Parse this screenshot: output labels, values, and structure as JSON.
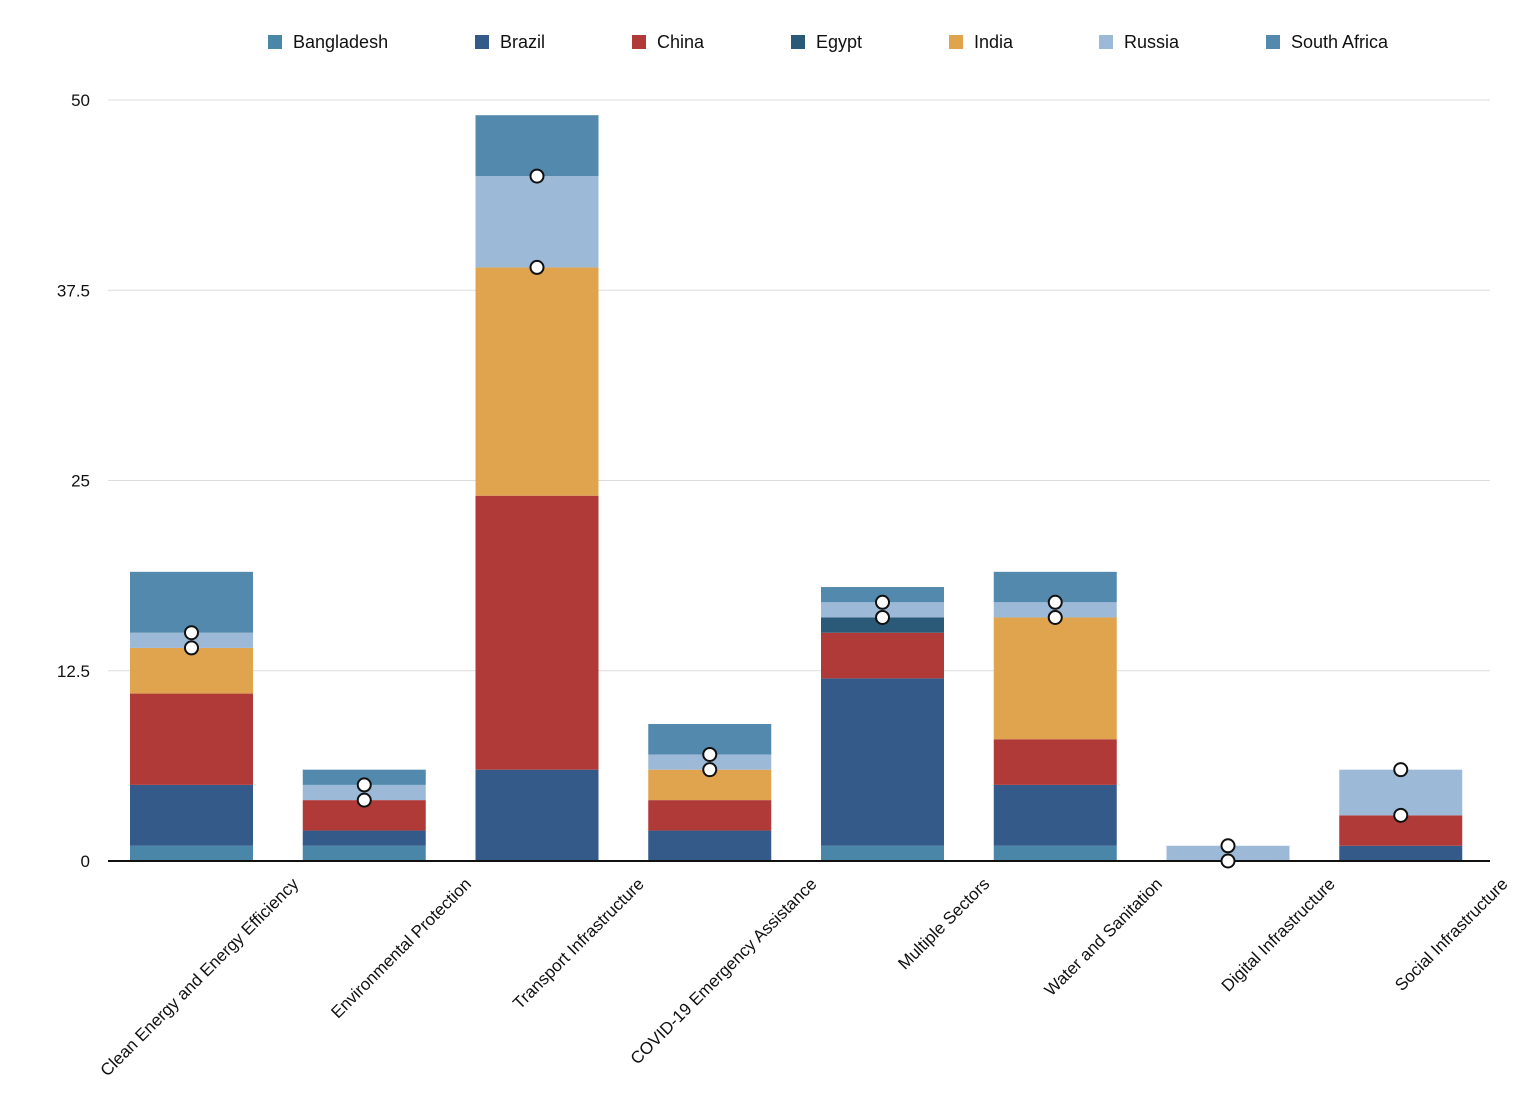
{
  "chart_data": {
    "type": "bar",
    "stacked": true,
    "categories": [
      "Clean Energy and Energy Efficiency",
      "Environmental Protection",
      "Transport Infrastructure",
      "COVID-19 Emergency Assistance",
      "Multiple Sectors",
      "Water and Sanitation",
      "Digital Infrastructure",
      "Social Infrastructure"
    ],
    "series": [
      {
        "name": "Bangladesh",
        "color": "#4a86a8",
        "values": [
          1,
          1,
          0,
          0,
          1,
          1,
          0,
          0
        ]
      },
      {
        "name": "Brazil",
        "color": "#345a8a",
        "values": [
          4,
          1,
          6,
          2,
          11,
          4,
          0,
          1
        ]
      },
      {
        "name": "China",
        "color": "#b03a38",
        "values": [
          6,
          2,
          18,
          2,
          3,
          3,
          0,
          2
        ]
      },
      {
        "name": "Egypt",
        "color": "#2b5a78",
        "values": [
          0,
          0,
          0,
          0,
          1,
          0,
          0,
          0
        ]
      },
      {
        "name": "India",
        "color": "#e0a44f",
        "values": [
          3,
          0,
          15,
          2,
          0,
          8,
          0,
          0
        ]
      },
      {
        "name": "Russia",
        "color": "#9db9d8",
        "values": [
          1,
          1,
          6,
          1,
          1,
          1,
          1,
          3
        ]
      },
      {
        "name": "South Africa",
        "color": "#5289ad",
        "values": [
          4,
          1,
          4,
          2,
          1,
          2,
          0,
          0
        ]
      }
    ],
    "markers": {
      "lower": [
        14,
        4,
        39,
        6,
        16,
        16,
        0,
        3
      ],
      "upper": [
        15,
        5,
        45,
        7,
        17,
        17,
        1,
        6
      ]
    },
    "yticks": [
      "0",
      "12.5",
      "25",
      "37.5",
      "50"
    ],
    "ytick_values": [
      0,
      12.5,
      25,
      37.5,
      50
    ],
    "ylim": [
      0,
      50
    ],
    "xlabel": "",
    "ylabel": "",
    "grid": true,
    "legend_position": "top"
  }
}
